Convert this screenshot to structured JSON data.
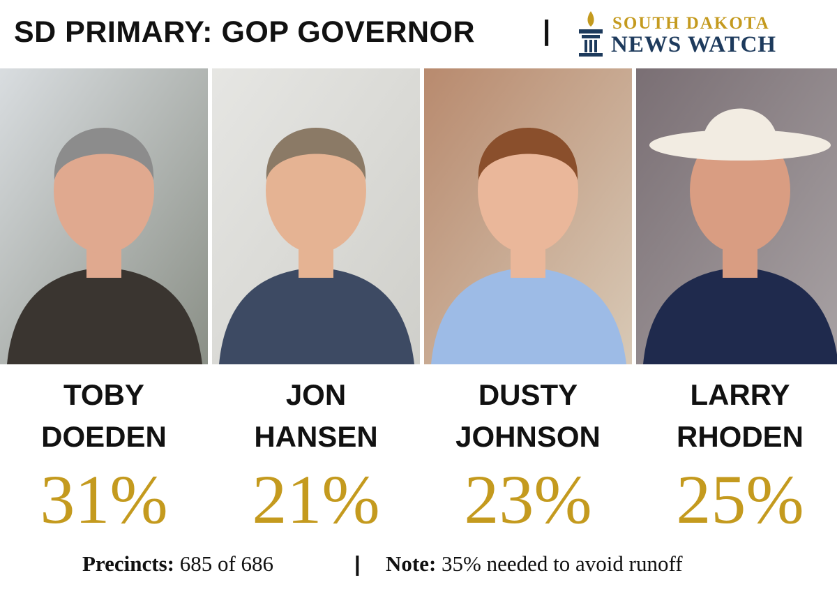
{
  "header": {
    "title": "SD PRIMARY: GOP GOVERNOR",
    "separator": "|",
    "logo_line1": "SOUTH DAKOTA",
    "logo_line2": "NEWS WATCH"
  },
  "candidates": [
    {
      "first": "TOBY",
      "last": "DOEDEN",
      "share": "31%"
    },
    {
      "first": "JON",
      "last": "HANSEN",
      "share": "21%"
    },
    {
      "first": "DUSTY",
      "last": "JOHNSON",
      "share": "23%"
    },
    {
      "first": "LARRY",
      "last": "RHODEN",
      "share": "25%"
    }
  ],
  "footer": {
    "precincts_label": "Precincts:",
    "precincts_value": "685 of 686",
    "separator": "|",
    "note_label": "Note:",
    "note_value": "35% needed to avoid runoff"
  }
}
